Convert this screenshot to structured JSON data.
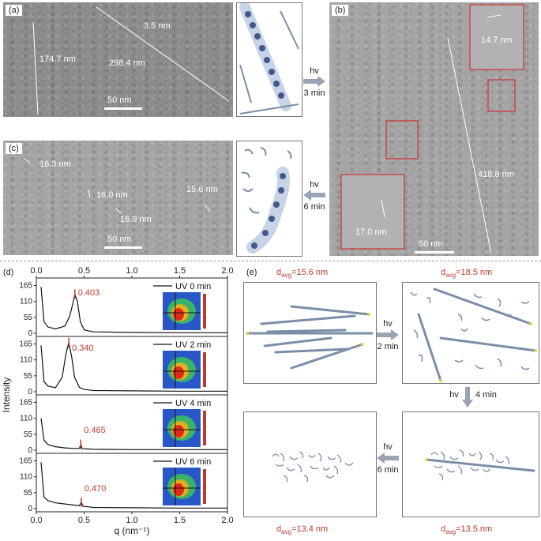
{
  "panel_a": {
    "tag": "(a)",
    "labels": [
      "174.7 nm",
      "298.4 nm",
      "3.5 nm"
    ],
    "scalebar": "50 nm"
  },
  "arrow_ab": {
    "line1": "hv",
    "line2": "3 min"
  },
  "panel_b": {
    "tag": "(b)",
    "labels": [
      "14.7 nm",
      "418.8 nm",
      "17.0 nm"
    ],
    "scalebar": "50 nm"
  },
  "panel_c": {
    "tag": "(c)",
    "labels": [
      "16.3 nm",
      "16.0 nm",
      "16.9 nm",
      "15.6 nm"
    ],
    "scalebar": "50 nm"
  },
  "arrow_bc": {
    "line1": "hv",
    "line2": "6 min"
  },
  "panel_d": {
    "tag": "(d)",
    "chart_data": {
      "type": "line",
      "xlabel": "q (nm⁻¹)",
      "ylabel": "Intensity",
      "x_ticks": [
        "0.0",
        "0.5",
        "1.0",
        "1.5",
        "2.0"
      ],
      "y_ticks": [
        "0",
        "55",
        "110",
        "165"
      ],
      "xlim": [
        0,
        2.0
      ],
      "ylim": [
        0,
        180
      ],
      "series": [
        {
          "name": "UV 0 min",
          "peak_label": "0.403",
          "x": [
            0.05,
            0.08,
            0.12,
            0.2,
            0.3,
            0.35,
            0.38,
            0.403,
            0.43,
            0.46,
            0.5,
            0.55,
            0.6,
            1.0,
            1.5,
            2.0
          ],
          "y": [
            160,
            40,
            22,
            15,
            25,
            60,
            100,
            135,
            110,
            40,
            12,
            8,
            5,
            3,
            2,
            2
          ]
        },
        {
          "name": "UV 2 min",
          "peak_label": "0.340",
          "x": [
            0.05,
            0.08,
            0.12,
            0.2,
            0.27,
            0.31,
            0.34,
            0.37,
            0.4,
            0.45,
            0.5,
            0.55,
            0.6,
            1.0,
            1.5,
            2.0
          ],
          "y": [
            160,
            35,
            20,
            14,
            50,
            130,
            170,
            120,
            50,
            15,
            8,
            6,
            4,
            3,
            2,
            2
          ]
        },
        {
          "name": "UV 4 min",
          "peak_label": "0.465",
          "x": [
            0.05,
            0.08,
            0.12,
            0.2,
            0.3,
            0.4,
            0.45,
            0.465,
            0.48,
            0.55,
            0.6,
            1.0,
            1.5,
            2.0
          ],
          "y": [
            110,
            35,
            20,
            12,
            8,
            6,
            6,
            20,
            5,
            4,
            3,
            2,
            2,
            2
          ]
        },
        {
          "name": "UV 6 min",
          "peak_label": "0.470",
          "x": [
            0.05,
            0.08,
            0.12,
            0.2,
            0.3,
            0.4,
            0.45,
            0.47,
            0.49,
            0.55,
            0.6,
            1.0,
            1.5,
            2.0
          ],
          "y": [
            160,
            40,
            28,
            20,
            16,
            12,
            10,
            22,
            8,
            6,
            4,
            3,
            2,
            2
          ]
        }
      ]
    }
  },
  "panel_e": {
    "tag": "(e)",
    "davg": [
      "15.6 nm",
      "18.5 nm",
      "13.5 nm",
      "13.4 nm"
    ],
    "davg_prefix": "d",
    "davg_sub": "avg",
    "arrows": [
      {
        "line1": "hv",
        "line2": "2 min"
      },
      {
        "line1": "hv",
        "line2": "4 min"
      },
      {
        "line1": "hv",
        "line2": "6 min"
      }
    ]
  },
  "colors": {
    "rod": "#7b8ea8",
    "tip": "#d8d84a",
    "red": "#c0392b",
    "arrow": "#9aa3b3"
  }
}
